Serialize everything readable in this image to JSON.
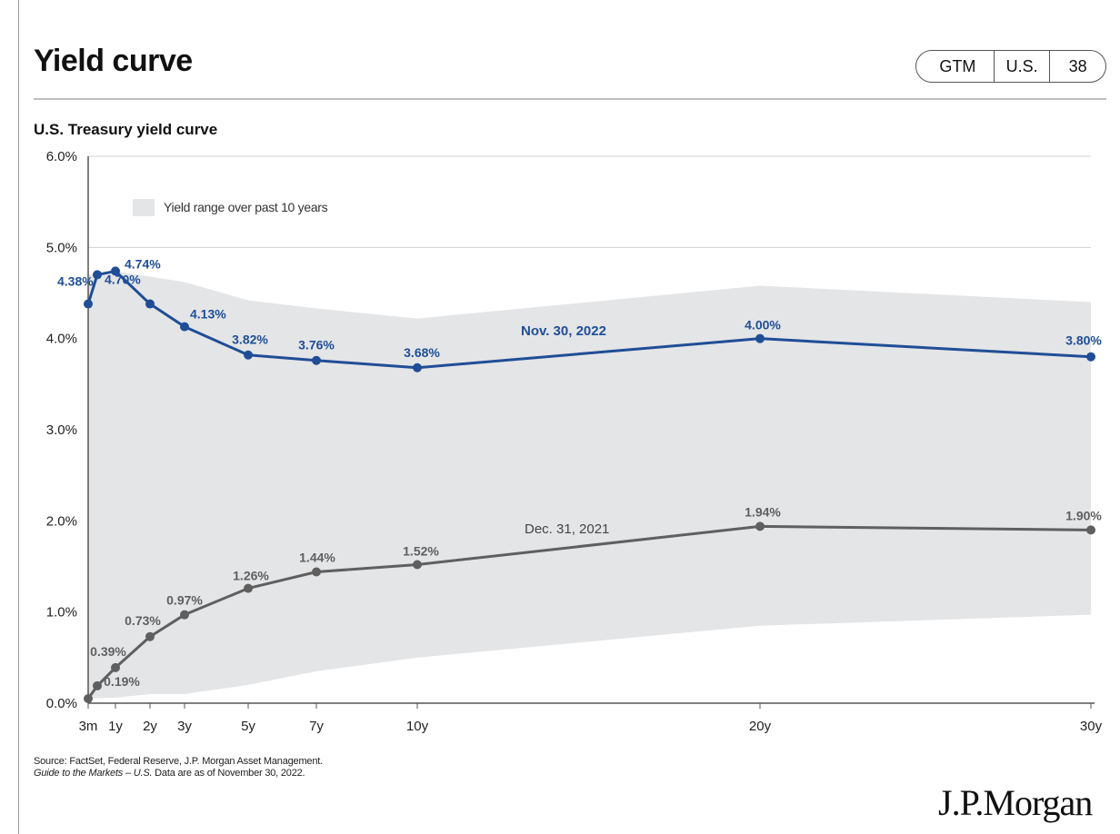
{
  "header": {
    "title": "Yield curve",
    "badge": [
      "GTM",
      "U.S.",
      "38"
    ]
  },
  "colors": {
    "nov_2022": "#1f4e96",
    "dec_2021": "#5f5f5f",
    "range_fill": "#e4e5e7",
    "axis": "#555555",
    "grid": "#d0d0d0"
  },
  "chart_data": {
    "type": "line",
    "title": "U.S. Treasury yield curve",
    "xlabel": "",
    "ylabel": "",
    "ylim": [
      0,
      6
    ],
    "yticks": [
      "0.0%",
      "1.0%",
      "2.0%",
      "3.0%",
      "4.0%",
      "5.0%",
      "6.0%"
    ],
    "x_unit": "years to maturity",
    "x": [
      0.25,
      0.5,
      1,
      2,
      3,
      5,
      7,
      10,
      20,
      30
    ],
    "xtick_values": [
      0.25,
      1,
      2,
      3,
      5,
      7,
      10,
      20,
      30
    ],
    "xtick_labels": [
      "3m",
      "1y",
      "2y",
      "3y",
      "5y",
      "7y",
      "10y",
      "20y",
      "30y"
    ],
    "grid": "horizontal",
    "legend": {
      "label": "Yield range over past 10 years",
      "position": "top-left"
    },
    "range_band": {
      "x": [
        0.25,
        1,
        2,
        3,
        5,
        7,
        10,
        20,
        30
      ],
      "low": [
        0.05,
        0.06,
        0.1,
        0.1,
        0.2,
        0.35,
        0.5,
        0.85,
        0.97
      ],
      "high": [
        4.7,
        4.74,
        4.68,
        4.62,
        4.42,
        4.33,
        4.22,
        4.58,
        4.4
      ]
    },
    "series": [
      {
        "name": "Nov. 30, 2022",
        "values": [
          4.38,
          4.7,
          4.74,
          4.38,
          4.13,
          3.82,
          3.76,
          3.68,
          4.0,
          3.8
        ],
        "labels": [
          "4.38%",
          "4.70%",
          "4.74%",
          "",
          "4.13%",
          "3.82%",
          "3.76%",
          "3.68%",
          "4.00%",
          "3.80%"
        ]
      },
      {
        "name": "Dec. 31, 2021",
        "values": [
          0.05,
          0.19,
          0.39,
          0.73,
          0.97,
          1.26,
          1.44,
          1.52,
          1.94,
          1.9
        ],
        "labels": [
          "",
          "0.19%",
          "0.39%",
          "0.73%",
          "0.97%",
          "1.26%",
          "1.44%",
          "1.52%",
          "1.94%",
          "1.90%"
        ]
      }
    ]
  },
  "footer": {
    "source_line1": "Source: FactSet, Federal Reserve, J.P. Morgan Asset Management.",
    "source_line2_italic": "Guide to the Markets – U.S.",
    "source_line2_rest": " Data are as of November 30, 2022.",
    "logo": "J.P.Morgan"
  }
}
